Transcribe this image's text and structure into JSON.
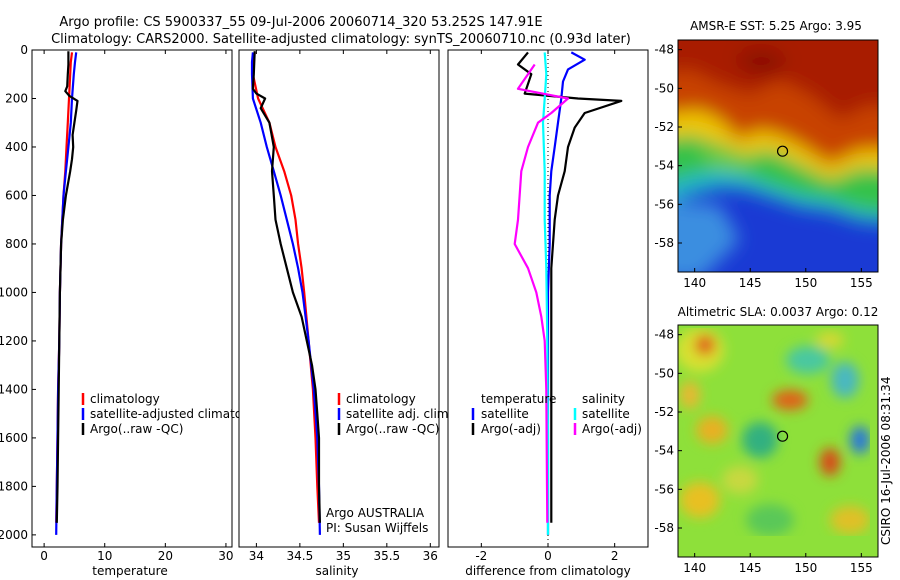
{
  "figure": {
    "title_line1": "Argo profile: CS 5900337_55 09-Jul-2006 20060714_320 53.252S 147.91E",
    "title_line2": "Climatology: CARS2000. Satellite-adjusted climatology: synTS_20060710.nc (0.93d later)",
    "footer_text": "CSIRO 16-Jul-2006 08:31:34",
    "argo_label": "Argo AUSTRALIA",
    "pi_label": "PI: Susan Wijffels"
  },
  "colors": {
    "climatology": "#ff0000",
    "satellite": "#0000ff",
    "argo": "#000000",
    "salinity_satellite": "#00ffff",
    "salinity_argo": "#ff00ff",
    "float_marker": "#000000"
  },
  "chart_data": [
    {
      "type": "line",
      "id": "temperature",
      "xlabel": "temperature",
      "xlim": [
        -2,
        31
      ],
      "ylim": [
        0,
        2050
      ],
      "y_reversed": true,
      "xticks": [
        0,
        10,
        20,
        30
      ],
      "xtick_labels": [
        "0",
        "10",
        "20",
        "30"
      ],
      "yticks": [
        0,
        200,
        400,
        600,
        800,
        1000,
        1200,
        1400,
        1600,
        1800,
        2000
      ],
      "ytick_labels": [
        "0",
        "200",
        "400",
        "600",
        "800",
        "1000",
        "1200",
        "1400",
        "1600",
        "1800",
        "2000"
      ],
      "legend": [
        "climatology",
        "satellite-adjusted climatology",
        "Argo(..raw -QC)"
      ],
      "series": [
        {
          "name": "climatology",
          "color": "#ff0000",
          "points": [
            [
              4.6,
              10
            ],
            [
              4.4,
              50
            ],
            [
              4.3,
              100
            ],
            [
              4.1,
              200
            ],
            [
              3.9,
              300
            ],
            [
              3.7,
              400
            ],
            [
              3.5,
              500
            ],
            [
              3.2,
              600
            ],
            [
              3.0,
              700
            ],
            [
              2.8,
              800
            ],
            [
              2.7,
              900
            ],
            [
              2.6,
              1000
            ],
            [
              2.5,
              1200
            ],
            [
              2.3,
              1400
            ],
            [
              2.2,
              1600
            ],
            [
              2.1,
              1800
            ],
            [
              2.0,
              1950
            ]
          ]
        },
        {
          "name": "satellite-adjusted climatology",
          "color": "#0000ff",
          "points": [
            [
              5.3,
              10
            ],
            [
              5.1,
              50
            ],
            [
              4.9,
              100
            ],
            [
              4.6,
              200
            ],
            [
              4.4,
              300
            ],
            [
              4.0,
              400
            ],
            [
              3.6,
              500
            ],
            [
              3.2,
              600
            ],
            [
              3.0,
              700
            ],
            [
              2.8,
              800
            ],
            [
              2.7,
              900
            ],
            [
              2.6,
              1000
            ],
            [
              2.5,
              1200
            ],
            [
              2.3,
              1400
            ],
            [
              2.2,
              1600
            ],
            [
              2.1,
              1800
            ],
            [
              2.0,
              2000
            ]
          ]
        },
        {
          "name": "Argo(..raw -QC)",
          "color": "#000000",
          "points": [
            [
              4.0,
              5
            ],
            [
              4.0,
              60
            ],
            [
              3.9,
              100
            ],
            [
              3.8,
              150
            ],
            [
              3.5,
              170
            ],
            [
              4.2,
              190
            ],
            [
              5.5,
              210
            ],
            [
              5.3,
              250
            ],
            [
              5.0,
              300
            ],
            [
              4.7,
              350
            ],
            [
              4.8,
              400
            ],
            [
              4.6,
              450
            ],
            [
              4.3,
              500
            ],
            [
              3.6,
              600
            ],
            [
              3.1,
              700
            ],
            [
              2.8,
              800
            ],
            [
              2.7,
              900
            ],
            [
              2.6,
              1000
            ],
            [
              2.5,
              1200
            ],
            [
              2.4,
              1400
            ],
            [
              2.3,
              1600
            ],
            [
              2.2,
              1800
            ],
            [
              2.1,
              1950
            ]
          ]
        }
      ]
    },
    {
      "type": "line",
      "id": "salinity",
      "xlabel": "salinity",
      "xlim": [
        33.8,
        36.1
      ],
      "ylim": [
        0,
        2050
      ],
      "y_reversed": true,
      "xticks": [
        34,
        34.5,
        35,
        35.5,
        36
      ],
      "xtick_labels": [
        "34",
        "34.5",
        "35",
        "35.5",
        "36"
      ],
      "legend": [
        "climatology",
        "satellite adj. clim.",
        "Argo(..raw -QC)"
      ],
      "series": [
        {
          "name": "climatology",
          "color": "#ff0000",
          "points": [
            [
              33.98,
              10
            ],
            [
              33.97,
              50
            ],
            [
              33.96,
              100
            ],
            [
              34.02,
              200
            ],
            [
              34.15,
              300
            ],
            [
              34.22,
              400
            ],
            [
              34.32,
              500
            ],
            [
              34.4,
              600
            ],
            [
              34.45,
              700
            ],
            [
              34.48,
              800
            ],
            [
              34.52,
              900
            ],
            [
              34.55,
              1000
            ],
            [
              34.6,
              1200
            ],
            [
              34.65,
              1400
            ],
            [
              34.68,
              1600
            ],
            [
              34.7,
              1800
            ],
            [
              34.72,
              1950
            ]
          ]
        },
        {
          "name": "satellite adj. clim.",
          "color": "#0000ff",
          "points": [
            [
              33.96,
              10
            ],
            [
              33.95,
              50
            ],
            [
              33.95,
              100
            ],
            [
              33.96,
              200
            ],
            [
              34.05,
              300
            ],
            [
              34.12,
              400
            ],
            [
              34.2,
              500
            ],
            [
              34.28,
              600
            ],
            [
              34.35,
              700
            ],
            [
              34.42,
              800
            ],
            [
              34.48,
              900
            ],
            [
              34.53,
              1000
            ],
            [
              34.6,
              1200
            ],
            [
              34.66,
              1400
            ],
            [
              34.7,
              1600
            ],
            [
              34.72,
              1800
            ],
            [
              34.73,
              2000
            ]
          ]
        },
        {
          "name": "Argo(..raw -QC)",
          "color": "#000000",
          "points": [
            [
              33.98,
              5
            ],
            [
              33.97,
              100
            ],
            [
              33.96,
              160
            ],
            [
              34.0,
              180
            ],
            [
              34.1,
              200
            ],
            [
              34.05,
              240
            ],
            [
              34.15,
              300
            ],
            [
              34.2,
              400
            ],
            [
              34.18,
              500
            ],
            [
              34.2,
              600
            ],
            [
              34.22,
              700
            ],
            [
              34.28,
              800
            ],
            [
              34.35,
              900
            ],
            [
              34.42,
              1000
            ],
            [
              34.52,
              1100
            ],
            [
              34.58,
              1200
            ],
            [
              34.64,
              1300
            ],
            [
              34.68,
              1400
            ],
            [
              34.7,
              1500
            ],
            [
              34.72,
              1600
            ],
            [
              34.72,
              1800
            ],
            [
              34.73,
              1950
            ]
          ]
        }
      ]
    },
    {
      "type": "line",
      "id": "difference",
      "xlabel": "difference from climatology",
      "xlim": [
        -3.0,
        3.0
      ],
      "ylim": [
        0,
        2050
      ],
      "y_reversed": true,
      "xticks": [
        -2,
        0,
        2
      ],
      "xtick_labels": [
        "-2",
        "0",
        "2"
      ],
      "legend_left": [
        "temperature",
        "satellite",
        "Argo(-adj)"
      ],
      "legend_right": [
        "salinity",
        "satellite",
        "Argo(-adj)"
      ],
      "series": [
        {
          "name": "temperature satellite",
          "color": "#0000ff",
          "points": [
            [
              0.7,
              10
            ],
            [
              1.1,
              40
            ],
            [
              0.6,
              80
            ],
            [
              0.45,
              130
            ],
            [
              0.4,
              200
            ],
            [
              0.3,
              300
            ],
            [
              0.2,
              400
            ],
            [
              0.1,
              500
            ],
            [
              0.05,
              600
            ],
            [
              0.05,
              800
            ],
            [
              0.0,
              1000
            ],
            [
              0.0,
              1400
            ],
            [
              0.0,
              2000
            ]
          ]
        },
        {
          "name": "temperature Argo(-adj)",
          "color": "#000000",
          "points": [
            [
              -0.6,
              10
            ],
            [
              -0.9,
              60
            ],
            [
              -0.5,
              100
            ],
            [
              -0.7,
              180
            ],
            [
              0.9,
              200
            ],
            [
              2.2,
              210
            ],
            [
              1.1,
              260
            ],
            [
              0.8,
              320
            ],
            [
              0.6,
              400
            ],
            [
              0.5,
              500
            ],
            [
              0.3,
              600
            ],
            [
              0.2,
              700
            ],
            [
              0.15,
              800
            ],
            [
              0.1,
              900
            ],
            [
              0.1,
              1000
            ],
            [
              0.1,
              1400
            ],
            [
              0.1,
              1800
            ],
            [
              0.1,
              1950
            ]
          ]
        },
        {
          "name": "salinity satellite",
          "color": "#00ffff",
          "points": [
            [
              -0.1,
              10
            ],
            [
              -0.05,
              100
            ],
            [
              -0.1,
              200
            ],
            [
              -0.15,
              300
            ],
            [
              -0.1,
              500
            ],
            [
              -0.1,
              700
            ],
            [
              -0.05,
              900
            ],
            [
              -0.02,
              1200
            ],
            [
              0.0,
              1600
            ],
            [
              0.0,
              2000
            ]
          ]
        },
        {
          "name": "salinity Argo(-adj)",
          "color": "#ff00ff",
          "points": [
            [
              -0.4,
              60
            ],
            [
              -0.9,
              160
            ],
            [
              0.6,
              200
            ],
            [
              0.1,
              260
            ],
            [
              -0.3,
              300
            ],
            [
              -0.6,
              400
            ],
            [
              -0.8,
              500
            ],
            [
              -0.9,
              700
            ],
            [
              -1.0,
              800
            ],
            [
              -0.6,
              900
            ],
            [
              -0.35,
              1000
            ],
            [
              -0.2,
              1100
            ],
            [
              -0.1,
              1200
            ],
            [
              -0.05,
              1400
            ],
            [
              -0.03,
              1800
            ],
            [
              -0.02,
              1950
            ]
          ]
        }
      ]
    },
    {
      "type": "heatmap",
      "id": "sst_map",
      "title": "AMSR-E SST: 5.25 Argo: 3.95",
      "xlim": [
        138.5,
        156.5
      ],
      "ylim": [
        -59.5,
        -47.5
      ],
      "xticks": [
        140,
        145,
        150,
        155
      ],
      "xtick_labels": [
        "140",
        "145",
        "150",
        "155"
      ],
      "yticks": [
        -48,
        -50,
        -52,
        -54,
        -56,
        -58
      ],
      "ytick_labels": [
        "-48",
        "-50",
        "-52",
        "-54",
        "-56",
        "-58"
      ],
      "float_position": [
        147.91,
        -53.252
      ]
    },
    {
      "type": "heatmap",
      "id": "sla_map",
      "title": "Altimetric SLA: 0.0037 Argo: 0.12",
      "xlim": [
        138.5,
        156.5
      ],
      "ylim": [
        -59.5,
        -47.5
      ],
      "xticks": [
        140,
        145,
        150,
        155
      ],
      "xtick_labels": [
        "140",
        "145",
        "150",
        "155"
      ],
      "yticks": [
        -48,
        -50,
        -52,
        -54,
        -56,
        -58
      ],
      "ytick_labels": [
        "-48",
        "-50",
        "-52",
        "-54",
        "-56",
        "-58"
      ],
      "float_position": [
        147.91,
        -53.252
      ]
    }
  ]
}
